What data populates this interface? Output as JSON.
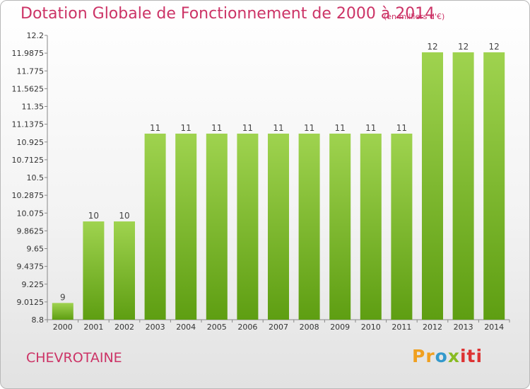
{
  "chart_data": {
    "type": "bar",
    "title": "Dotation Globale de Fonctionnement de 2000 à 2014",
    "subtitle": "(en milliers d'€)",
    "categories": [
      "2000",
      "2001",
      "2002",
      "2003",
      "2004",
      "2005",
      "2006",
      "2007",
      "2008",
      "2009",
      "2010",
      "2011",
      "2012",
      "2013",
      "2014"
    ],
    "values": [
      9,
      10,
      10,
      11,
      11,
      11,
      11,
      11,
      11,
      11,
      11,
      11,
      12,
      12,
      12
    ],
    "bar_levels": [
      9,
      9.975,
      9.975,
      11.025,
      11.025,
      11.025,
      11.025,
      11.025,
      11.025,
      11.025,
      11.025,
      11.025,
      11.9975,
      11.9975,
      11.9975
    ],
    "yticks": [
      "8.8",
      "9.0125",
      "9.225",
      "9.4375",
      "9.65",
      "9.8625",
      "10.075",
      "10.2875",
      "10.5",
      "10.7125",
      "10.925",
      "11.1375",
      "11.35",
      "11.5625",
      "11.775",
      "11.9875",
      "12.2"
    ],
    "ylim": [
      8.8,
      12.2
    ],
    "xlabel": "",
    "ylabel": "",
    "grid": false,
    "colors": {
      "bar_top": "#9fd34f",
      "bar_bottom": "#5e9e12",
      "title": "#cc3366"
    }
  },
  "commune": "CHEVROTAINE",
  "logo": {
    "part1": "Pr",
    "part2": "o",
    "part3": "x",
    "part4": "iti"
  }
}
